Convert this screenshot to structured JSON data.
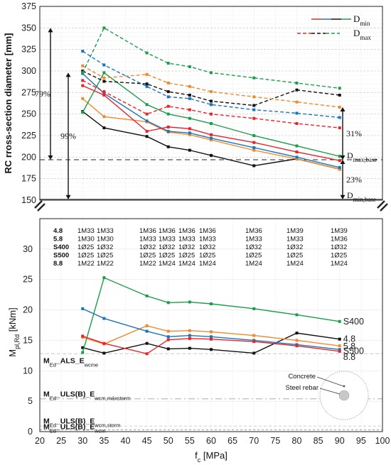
{
  "chart_data": [
    {
      "type": "line",
      "ylabel": "RC rross-section diameter [mm]",
      "ylim": [
        150,
        375
      ],
      "yticks": [
        150,
        175,
        200,
        225,
        250,
        275,
        300,
        325,
        350,
        375
      ],
      "legend": [
        {
          "label": "D",
          "sub": "min",
          "style": "solid",
          "colors": [
            "#e8242a",
            "#1b75bc",
            "#111111",
            "#1a9e4a"
          ]
        },
        {
          "label": "D",
          "sub": "max",
          "style": "dashed",
          "colors": [
            "#e8242a",
            "#111111",
            "#1a9e4a"
          ]
        }
      ],
      "series": [
        {
          "group": "min",
          "color": "#111111",
          "x": [
            30,
            35,
            45,
            50,
            55,
            60,
            70,
            80,
            90
          ],
          "values": [
            253,
            234,
            224,
            212,
            208,
            202,
            190,
            198,
            186
          ]
        },
        {
          "group": "min",
          "color": "#f08a2c",
          "x": [
            30,
            35,
            45,
            50,
            55,
            60,
            70,
            80,
            90
          ],
          "values": [
            268,
            247,
            241,
            229,
            226,
            220,
            208,
            198,
            186
          ]
        },
        {
          "group": "min",
          "color": "#1a9e4a",
          "x": [
            30,
            35,
            45,
            50,
            55,
            60,
            70,
            80,
            90
          ],
          "values": [
            252,
            298,
            261,
            250,
            245,
            239,
            225,
            213,
            201
          ]
        },
        {
          "group": "min",
          "color": "#1b75bc",
          "x": [
            30,
            35,
            45,
            50,
            55,
            60,
            70,
            80,
            90
          ],
          "values": [
            297,
            274,
            242,
            230,
            228,
            222,
            211,
            200,
            188
          ]
        },
        {
          "group": "min",
          "color": "#e8242a",
          "x": [
            30,
            35,
            45,
            50,
            55,
            60,
            70,
            80,
            90
          ],
          "values": [
            283,
            272,
            230,
            235,
            233,
            226,
            217,
            206,
            196
          ]
        },
        {
          "group": "max",
          "color": "#111111",
          "x": [
            30,
            35,
            45,
            50,
            55,
            60,
            70,
            80,
            90
          ],
          "values": [
            300,
            288,
            285,
            276,
            272,
            265,
            260,
            278,
            272
          ]
        },
        {
          "group": "max",
          "color": "#f08a2c",
          "x": [
            30,
            35,
            45,
            50,
            55,
            60,
            70,
            80,
            90
          ],
          "values": [
            306,
            292,
            296,
            286,
            282,
            276,
            270,
            264,
            258
          ]
        },
        {
          "group": "max",
          "color": "#1a9e4a",
          "x": [
            30,
            35,
            45,
            50,
            55,
            60,
            70,
            80,
            90
          ],
          "values": [
            298,
            350,
            321,
            309,
            305,
            298,
            292,
            286,
            280
          ]
        },
        {
          "group": "max",
          "color": "#1b75bc",
          "x": [
            30,
            35,
            45,
            50,
            55,
            60,
            70,
            80,
            90
          ],
          "values": [
            323,
            307,
            282,
            270,
            268,
            261,
            255,
            251,
            246
          ]
        },
        {
          "group": "max",
          "color": "#e8242a",
          "x": [
            30,
            35,
            45,
            50,
            55,
            60,
            70,
            80,
            90
          ],
          "values": [
            289,
            276,
            250,
            259,
            255,
            250,
            245,
            239,
            234
          ]
        }
      ],
      "reference_lines": [
        {
          "y": 197,
          "style": "dashed"
        },
        {
          "y": 151,
          "style": "solid"
        }
      ],
      "annotations": [
        {
          "text": "79%",
          "x": 30,
          "from": 197,
          "to": 350
        },
        {
          "text": "99%",
          "x": 30,
          "from": 151,
          "to": 298
        },
        {
          "text": "31%",
          "x": 91,
          "from": 197,
          "to": 258
        },
        {
          "text": "23%",
          "x": 91,
          "from": 151,
          "to": 197
        },
        {
          "text": "D",
          "sub": "max,base"
        },
        {
          "text": "D",
          "sub": "min,base"
        }
      ]
    },
    {
      "type": "line",
      "xlabel": "f",
      "xlabel_sub": "c",
      "xlabel_unit": "[MPa]",
      "ylabel": "M",
      "ylabel_sub": "pl,Rd",
      "ylabel_unit": "[kNm]",
      "xlim": [
        20,
        100
      ],
      "ylim": [
        0,
        35
      ],
      "xticks": [
        20,
        25,
        30,
        35,
        40,
        45,
        50,
        55,
        60,
        65,
        70,
        75,
        80,
        85,
        90,
        95,
        100
      ],
      "yticks": [
        0,
        5,
        10,
        15,
        20,
        25,
        30
      ],
      "series": [
        {
          "name": "4.8",
          "color": "#111111",
          "x": [
            30,
            35,
            45,
            50,
            55,
            60,
            70,
            80,
            90
          ],
          "values": [
            13.8,
            12.9,
            14.5,
            13.6,
            13.7,
            13.5,
            12.9,
            16.2,
            15.2
          ]
        },
        {
          "name": "5.8",
          "color": "#f08a2c",
          "x": [
            30,
            35,
            45,
            50,
            55,
            60,
            70,
            80,
            90
          ],
          "values": [
            15.5,
            14.4,
            17.4,
            16.5,
            16.6,
            16.4,
            15.8,
            15.0,
            14.1
          ]
        },
        {
          "name": "S400",
          "color": "#1a9e4a",
          "x": [
            30,
            35,
            45,
            50,
            55,
            60,
            70,
            80,
            90
          ],
          "values": [
            13.0,
            25.3,
            22.3,
            21.2,
            21.3,
            21.0,
            20.2,
            19.2,
            18.1
          ]
        },
        {
          "name": "S500",
          "color": "#1b75bc",
          "x": [
            30,
            35,
            45,
            50,
            55,
            60,
            70,
            80,
            90
          ],
          "values": [
            20.2,
            18.6,
            16.5,
            15.6,
            15.8,
            15.6,
            15.0,
            14.3,
            13.5
          ]
        },
        {
          "name": "8.8",
          "color": "#e8242a",
          "x": [
            30,
            35,
            45,
            50,
            55,
            60,
            70,
            80,
            90
          ],
          "values": [
            15.7,
            14.5,
            12.8,
            15.1,
            15.3,
            15.2,
            14.8,
            14.1,
            13.2
          ]
        }
      ],
      "table": {
        "x": [
          30,
          35,
          45,
          50,
          55,
          60,
          70,
          80,
          90
        ],
        "rows": [
          {
            "label": "4.8",
            "color": "#111111",
            "cells": [
              "1M33",
              "1M33",
              "1M36",
              "1M36",
              "1M36",
              "1M36",
              "1M36",
              "1M39",
              "1M39"
            ]
          },
          {
            "label": "5.8",
            "color": "#f08a2c",
            "cells": [
              "1M30",
              "1M30",
              "1M33",
              "1M33",
              "1M33",
              "1M33",
              "1M33",
              "1M33",
              "1M36"
            ]
          },
          {
            "label": "S400",
            "color": "#1a9e4a",
            "cells": [
              "1Ø25",
              "1Ø32",
              "1Ø32",
              "1Ø32",
              "1Ø32",
              "1Ø32",
              "1Ø32",
              "1Ø32",
              "1Ø32"
            ]
          },
          {
            "label": "S500",
            "color": "#1b75bc",
            "cells": [
              "1Ø25",
              "1Ø25",
              "1Ø25",
              "1Ø25",
              "1Ø25",
              "1Ø25",
              "1Ø25",
              "1Ø25",
              "1Ø25"
            ]
          },
          {
            "label": "8.8",
            "color": "#e8242a",
            "cells": [
              "1M22",
              "1M22",
              "1M22",
              "1M24",
              "1M24",
              "1M24",
              "1M24",
              "1M24",
              "1M24"
            ]
          }
        ]
      },
      "reference_lines": [
        {
          "y": 12.8,
          "label": "M",
          "sub": "Ed",
          "rest": "_ALS_E",
          "rest_sub": "wcme"
        },
        {
          "y": 5.4,
          "label": "M",
          "sub": "Ed",
          "rest": "_ULS(B)_E",
          "rest_sub": "wcm,máxstorm"
        },
        {
          "y": 0.9,
          "label": "M",
          "sub": "Ed",
          "rest": "_ULS(B)_E",
          "rest_sub": "wcm,storm"
        },
        {
          "y": 0.3,
          "label": "M",
          "sub": "Ed",
          "rest": "_ULS(B)_E",
          "rest_sub": "wcm"
        }
      ],
      "inset": {
        "labels": [
          "Concrete",
          "Steel rebar"
        ]
      }
    }
  ]
}
